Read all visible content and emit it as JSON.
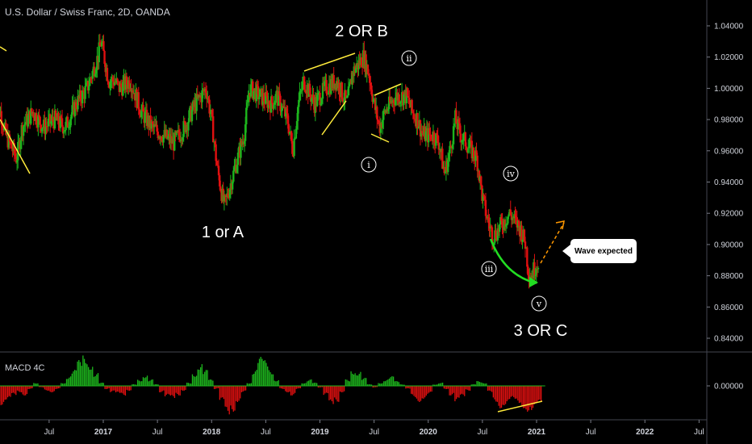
{
  "chart_title": "U.S. Dollar / Swiss Franc, 2D, OANDA",
  "macd_title": "MACD 4C",
  "callout_text": "Wave expected",
  "colors": {
    "bull": "#26a69a",
    "green": "#1db51d",
    "red": "#e01010",
    "yellow": "#ffeb3b",
    "orange": "#ff9800",
    "arrow_green": "#22dd22",
    "grid": "#2a2e39"
  },
  "chart_data": [
    {
      "type": "line",
      "ylim": [
        0.83,
        1.05
      ],
      "xlim": [
        2016.0,
        2022.6
      ],
      "y_ticks": [
        "1.04000",
        "1.02000",
        "1.00000",
        "0.98000",
        "0.96000",
        "0.94000",
        "0.92000",
        "0.90000",
        "0.88000",
        "0.86000",
        "0.84000"
      ],
      "x_ticks": [
        {
          "label": "Jul",
          "x": 2016.5
        },
        {
          "label": "2017",
          "x": 2017.0
        },
        {
          "label": "Jul",
          "x": 2017.5
        },
        {
          "label": "2018",
          "x": 2018.0
        },
        {
          "label": "Jul",
          "x": 2018.5
        },
        {
          "label": "2019",
          "x": 2019.0
        },
        {
          "label": "Jul",
          "x": 2019.5
        },
        {
          "label": "2020",
          "x": 2020.0
        },
        {
          "label": "Jul",
          "x": 2020.5
        },
        {
          "label": "2021",
          "x": 2021.0
        },
        {
          "label": "Jul",
          "x": 2021.5
        },
        {
          "label": "2022",
          "x": 2022.0
        },
        {
          "label": "Jul",
          "x": 2022.5
        }
      ],
      "series": [
        {
          "values": [
            [
              2016.0,
              0.99
            ],
            [
              2016.05,
              0.985
            ],
            [
              2016.1,
              0.97
            ],
            [
              2016.2,
              0.955
            ],
            [
              2016.25,
              0.975
            ],
            [
              2016.35,
              0.985
            ],
            [
              2016.45,
              0.975
            ],
            [
              2016.55,
              0.98
            ],
            [
              2016.65,
              0.975
            ],
            [
              2016.75,
              0.99
            ],
            [
              2016.85,
              1.0
            ],
            [
              2016.95,
              1.02
            ],
            [
              2016.98,
              1.03
            ],
            [
              2017.05,
              1.005
            ],
            [
              2017.1,
              1.005
            ],
            [
              2017.15,
              1.0
            ],
            [
              2017.25,
              1.005
            ],
            [
              2017.35,
              0.985
            ],
            [
              2017.45,
              0.975
            ],
            [
              2017.55,
              0.97
            ],
            [
              2017.65,
              0.965
            ],
            [
              2017.75,
              0.975
            ],
            [
              2017.85,
              0.99
            ],
            [
              2017.95,
              1.0
            ],
            [
              2018.0,
              0.98
            ],
            [
              2018.05,
              0.95
            ],
            [
              2018.1,
              0.93
            ],
            [
              2018.12,
              0.925
            ],
            [
              2018.2,
              0.945
            ],
            [
              2018.3,
              0.97
            ],
            [
              2018.35,
              1.0
            ],
            [
              2018.45,
              0.995
            ],
            [
              2018.55,
              0.99
            ],
            [
              2018.6,
              0.995
            ],
            [
              2018.7,
              0.98
            ],
            [
              2018.75,
              0.96
            ],
            [
              2018.8,
              0.99
            ],
            [
              2018.85,
              1.005
            ],
            [
              2018.95,
              0.99
            ],
            [
              2019.05,
              1.0
            ],
            [
              2019.15,
              1.005
            ],
            [
              2019.25,
              0.99
            ],
            [
              2019.3,
              1.01
            ],
            [
              2019.35,
              1.015
            ],
            [
              2019.4,
              1.02
            ],
            [
              2019.45,
              1.01
            ],
            [
              2019.5,
              0.99
            ],
            [
              2019.55,
              0.975
            ],
            [
              2019.6,
              0.985
            ],
            [
              2019.7,
              0.995
            ],
            [
              2019.8,
              0.995
            ],
            [
              2019.85,
              0.985
            ],
            [
              2019.9,
              0.98
            ],
            [
              2019.95,
              0.97
            ],
            [
              2020.05,
              0.97
            ],
            [
              2020.1,
              0.965
            ],
            [
              2020.15,
              0.945
            ],
            [
              2020.2,
              0.96
            ],
            [
              2020.25,
              0.98
            ],
            [
              2020.3,
              0.97
            ],
            [
              2020.35,
              0.965
            ],
            [
              2020.45,
              0.955
            ],
            [
              2020.5,
              0.93
            ],
            [
              2020.55,
              0.915
            ],
            [
              2020.6,
              0.905
            ],
            [
              2020.65,
              0.91
            ],
            [
              2020.7,
              0.915
            ],
            [
              2020.75,
              0.92
            ],
            [
              2020.8,
              0.915
            ],
            [
              2020.85,
              0.91
            ],
            [
              2020.9,
              0.9
            ],
            [
              2020.92,
              0.885
            ],
            [
              2020.95,
              0.88
            ],
            [
              2020.98,
              0.885
            ],
            [
              2021.02,
              0.89
            ]
          ]
        }
      ]
    },
    {
      "type": "bar",
      "ylim": [
        -1,
        1
      ],
      "y_ticks": [
        "0.00000"
      ],
      "xlim": [
        2016.0,
        2022.6
      ],
      "values": [
        -0.55,
        -0.6,
        -0.45,
        -0.3,
        -0.2,
        -0.3,
        -0.1,
        0.1,
        -0.05,
        -0.15,
        -0.2,
        -0.1,
        0.1,
        0.3,
        0.5,
        0.8,
        0.95,
        0.7,
        0.4,
        0.1,
        -0.1,
        -0.2,
        -0.25,
        -0.3,
        -0.15,
        0.05,
        0.2,
        0.35,
        0.2,
        0.05,
        -0.2,
        -0.35,
        -0.4,
        -0.3,
        -0.15,
        0.1,
        0.4,
        0.7,
        0.5,
        0.2,
        -0.1,
        -0.5,
        -0.9,
        -0.8,
        -0.5,
        -0.2,
        0.1,
        0.5,
        0.9,
        0.8,
        0.5,
        0.2,
        -0.1,
        -0.2,
        -0.3,
        -0.1,
        0.1,
        0.2,
        0.1,
        -0.05,
        -0.3,
        -0.6,
        -0.5,
        -0.2,
        0.2,
        0.5,
        0.45,
        0.25,
        0.05,
        -0.05,
        0.1,
        0.2,
        0.3,
        0.15,
        0.05,
        -0.1,
        -0.35,
        -0.5,
        -0.4,
        -0.25,
        0.05,
        0.1,
        -0.1,
        -0.3,
        -0.5,
        -0.35,
        -0.15,
        0.05,
        0.15,
        0.1,
        -0.2,
        -0.5,
        -0.7,
        -0.6,
        -0.45,
        -0.55,
        -0.7,
        -0.8,
        -0.75,
        -0.6
      ]
    }
  ],
  "annotations": {
    "wave_1": "1 or A",
    "wave_2": "2 OR B",
    "wave_3": "3 OR C",
    "sub_i": "i",
    "sub_ii": "ii",
    "sub_iii": "iii",
    "sub_iv": "iv",
    "sub_v": "v"
  }
}
